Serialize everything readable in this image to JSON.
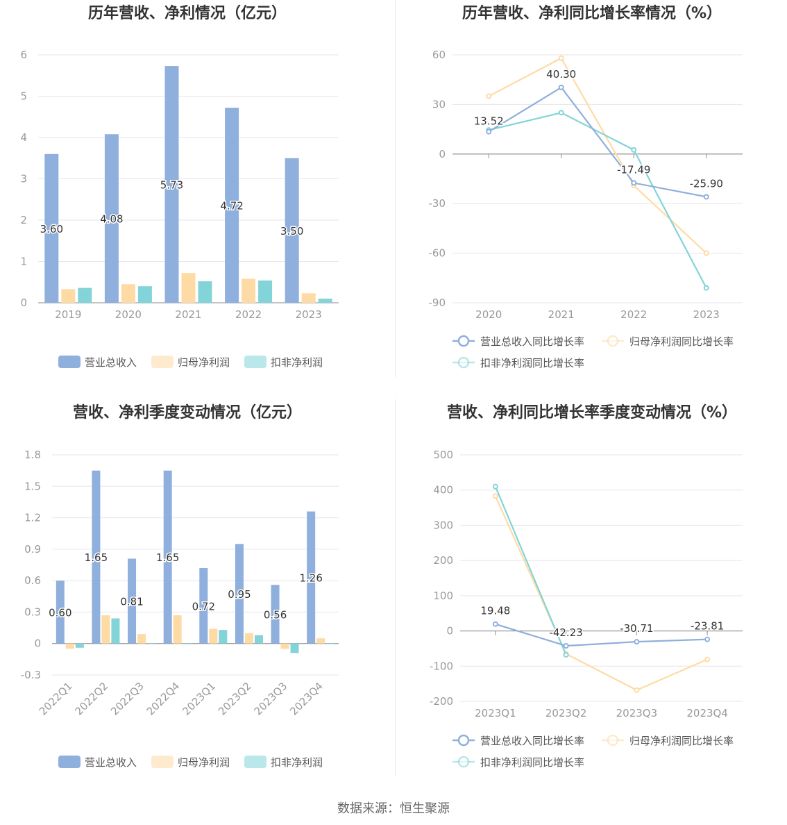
{
  "colors": {
    "revenue": "#8fafdc",
    "net_profit": "#fedba5",
    "deducted_profit": "#82d4d8",
    "axis_text": "#999999",
    "grid": "#e6e6ee",
    "title": "#333333"
  },
  "source": "数据来源：恒生聚源",
  "chart_data": [
    {
      "type": "bar",
      "title": "历年营收、净利情况（亿元）",
      "categories": [
        "2019",
        "2020",
        "2021",
        "2022",
        "2023"
      ],
      "ylim": [
        0,
        6
      ],
      "yticks": [
        "0",
        "1",
        "2",
        "3",
        "4",
        "5",
        "6"
      ],
      "series": [
        {
          "name": "营业总收入",
          "values": [
            3.6,
            4.08,
            5.73,
            4.72,
            3.5
          ],
          "labels": [
            "3.60",
            "4.08",
            "5.73",
            "4.72",
            "3.50"
          ]
        },
        {
          "name": "归母净利润",
          "values": [
            0.33,
            0.45,
            0.72,
            0.58,
            0.23
          ]
        },
        {
          "name": "扣非净利润",
          "values": [
            0.36,
            0.4,
            0.52,
            0.54,
            0.1
          ]
        }
      ],
      "legend": "bottom"
    },
    {
      "type": "line",
      "title": "历年营收、净利同比增长率情况（%）",
      "categories": [
        "2020",
        "2021",
        "2022",
        "2023"
      ],
      "ylim": [
        -90,
        60
      ],
      "yticks": [
        "-90",
        "-60",
        "-30",
        "0",
        "30",
        "60"
      ],
      "series": [
        {
          "name": "营业总收入同比增长率",
          "values": [
            13.52,
            40.3,
            -17.49,
            -25.9
          ],
          "labels": [
            "13.52",
            "40.30",
            "-17.49",
            "-25.90"
          ]
        },
        {
          "name": "归母净利润同比增长率",
          "values": [
            35,
            58,
            -19,
            -60
          ]
        },
        {
          "name": "扣非净利润同比增长率",
          "values": [
            14.5,
            25,
            2.5,
            -81
          ]
        }
      ],
      "legend": "bottom"
    },
    {
      "type": "bar",
      "title": "营收、净利季度变动情况（亿元）",
      "categories": [
        "2022Q1",
        "2022Q2",
        "2022Q3",
        "2022Q4",
        "2023Q1",
        "2023Q2",
        "2023Q3",
        "2023Q4"
      ],
      "ylim": [
        -0.3,
        1.8
      ],
      "yticks": [
        "-0.3",
        "0",
        "0.3",
        "0.6",
        "0.9",
        "1.2",
        "1.5",
        "1.8"
      ],
      "series": [
        {
          "name": "营业总收入",
          "values": [
            0.6,
            1.65,
            0.81,
            1.65,
            0.72,
            0.95,
            0.56,
            1.26
          ],
          "labels": [
            "0.60",
            "1.65",
            "0.81",
            "1.65",
            "0.72",
            "0.95",
            "0.56",
            "1.26"
          ]
        },
        {
          "name": "归母净利润",
          "values": [
            -0.05,
            0.27,
            0.09,
            0.27,
            0.14,
            0.1,
            -0.05,
            0.05
          ]
        },
        {
          "name": "扣非净利润",
          "values": [
            -0.04,
            0.24,
            0.0,
            0.0,
            0.13,
            0.08,
            -0.09,
            0.0
          ]
        }
      ],
      "legend": "bottom"
    },
    {
      "type": "line",
      "title": "营收、净利同比增长率季度变动情况（%）",
      "categories": [
        "2023Q1",
        "2023Q2",
        "2023Q3",
        "2023Q4"
      ],
      "ylim": [
        -200,
        500
      ],
      "yticks": [
        "-200",
        "-100",
        "0",
        "100",
        "200",
        "300",
        "400",
        "500"
      ],
      "series": [
        {
          "name": "营业总收入同比增长率",
          "values": [
            19.48,
            -42.23,
            -30.71,
            -23.81
          ],
          "labels": [
            "19.48",
            "-42.23",
            "-30.71",
            "-23.81"
          ]
        },
        {
          "name": "归母净利润同比增长率",
          "values": [
            383,
            -65,
            -168,
            -81
          ]
        },
        {
          "name": "扣非净利润同比增长率",
          "values": [
            410,
            -68,
            null,
            null
          ]
        }
      ],
      "legend": "bottom"
    }
  ]
}
